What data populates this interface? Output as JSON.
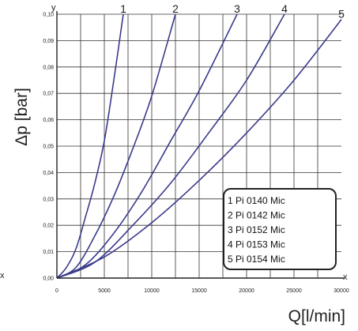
{
  "chart_data": {
    "type": "line",
    "xlabel": "Q[l/min]",
    "ylabel": "Δp [bar]",
    "x_axis_letter": "x",
    "y_axis_letter": "y",
    "left_edge_letter": "x",
    "xlim": [
      0,
      30000
    ],
    "ylim": [
      0,
      0.1
    ],
    "x_ticks": [
      0,
      5000,
      10000,
      15000,
      20000,
      25000,
      30000
    ],
    "x_tick_labels": [
      "0",
      "5000",
      "10000",
      "15000",
      "20000",
      "25000",
      "30000"
    ],
    "y_ticks": [
      0,
      0.01,
      0.02,
      0.03,
      0.04,
      0.05,
      0.06,
      0.07,
      0.08,
      0.09,
      0.1
    ],
    "y_tick_labels": [
      "0,00",
      "0,01",
      "0,02",
      "0,03",
      "0,04",
      "0,05",
      "0,06",
      "0,07",
      "0,08",
      "0,09",
      "0,10"
    ],
    "grid": true,
    "legend_position": "bottom-right",
    "colors": {
      "curve": "#3a3a8c",
      "grid": "#333333",
      "axis": "#222222"
    },
    "series": [
      {
        "name": "1 Pi 0140 Mic",
        "curve_label": "1",
        "x": [
          0,
          1000,
          2000,
          3000,
          4000,
          5000,
          6000,
          7000
        ],
        "y": [
          0,
          0.004,
          0.011,
          0.023,
          0.036,
          0.052,
          0.075,
          0.1
        ]
      },
      {
        "name": "2 Pi 0142 Mic",
        "curve_label": "2",
        "x": [
          0,
          2000,
          4000,
          6000,
          8000,
          10000,
          12500
        ],
        "y": [
          0,
          0.004,
          0.016,
          0.031,
          0.049,
          0.069,
          0.1
        ]
      },
      {
        "name": "3 Pi 0152 Mic",
        "curve_label": "3",
        "x": [
          0,
          3000,
          6000,
          9000,
          12000,
          15000,
          19000
        ],
        "y": [
          0,
          0.005,
          0.017,
          0.033,
          0.052,
          0.071,
          0.1
        ]
      },
      {
        "name": "4 Pi 0153 Mic",
        "curve_label": "4",
        "x": [
          0,
          4000,
          8000,
          12000,
          16000,
          20000,
          24000
        ],
        "y": [
          0,
          0.006,
          0.02,
          0.036,
          0.055,
          0.075,
          0.1
        ]
      },
      {
        "name": "5 Pi 0154 Mic",
        "curve_label": "5",
        "x": [
          0,
          5000,
          10000,
          15000,
          20000,
          25000,
          30000
        ],
        "y": [
          0,
          0.008,
          0.021,
          0.037,
          0.055,
          0.075,
          0.098
        ]
      }
    ]
  }
}
